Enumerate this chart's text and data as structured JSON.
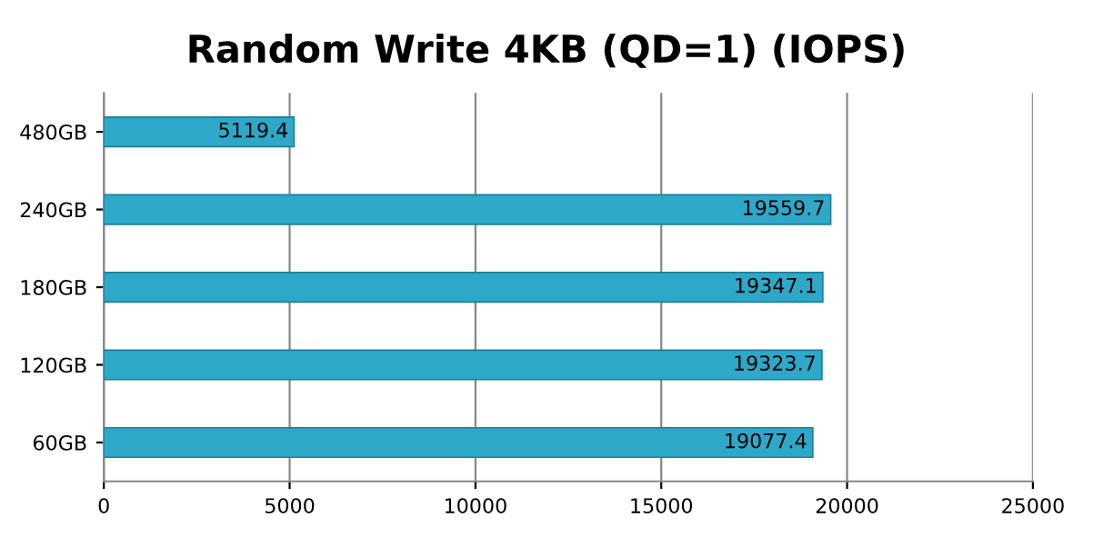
{
  "chart_data": {
    "type": "bar",
    "orientation": "horizontal",
    "title": "Random Write 4KB (QD=1) (IOPS)",
    "categories": [
      "480GB",
      "240GB",
      "180GB",
      "120GB",
      "60GB"
    ],
    "values": [
      5119.4,
      19559.7,
      19347.1,
      19323.7,
      19077.4
    ],
    "color": "#2ea8c8",
    "xlim": [
      0,
      25000
    ],
    "xticks": [
      0,
      5000,
      10000,
      15000,
      20000,
      25000
    ],
    "grid": "x",
    "data_labels": true
  }
}
